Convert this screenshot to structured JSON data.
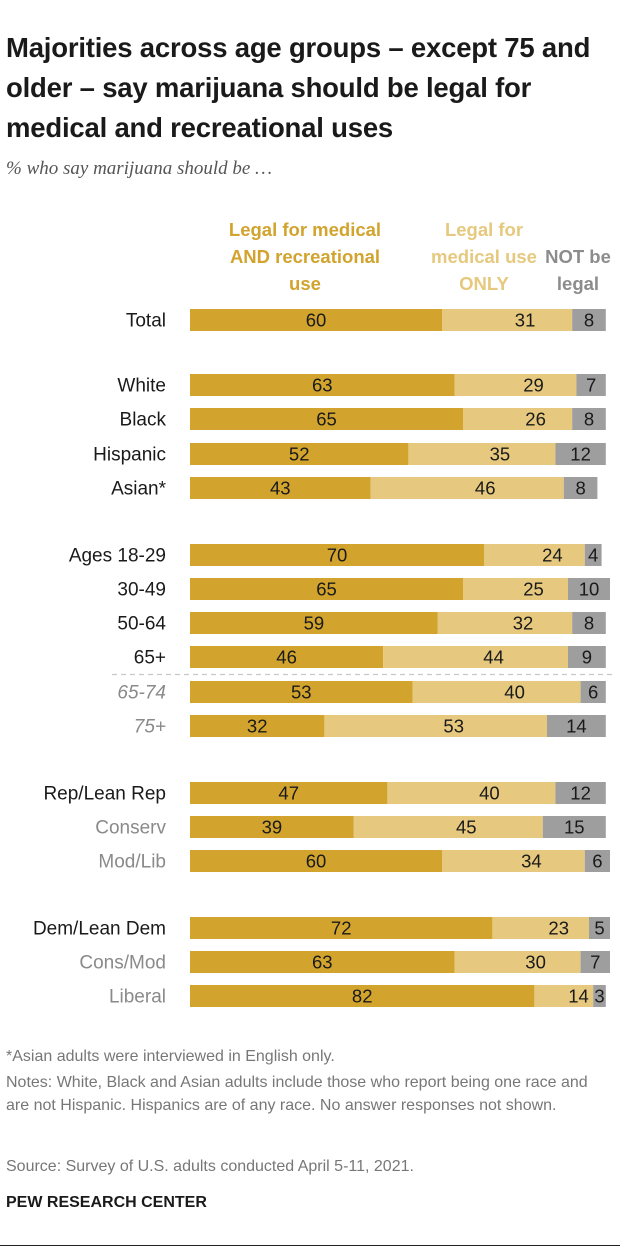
{
  "header": {
    "title": "Majorities across age groups – except 75 and older – say marijuana should be legal for medical and recreational uses",
    "subtitle": "% who say marijuana should be …"
  },
  "legend": {
    "series_a": "Legal for medical AND recreational use",
    "series_b": "Legal for medical use ONLY",
    "series_c": "NOT be legal"
  },
  "colors": {
    "series_a": "#d2a42e",
    "series_b": "#e6c97e",
    "series_c": "#9e9e9e",
    "label_dark": "#1a1a1a",
    "label_gray": "#8a8a8a"
  },
  "chart_data": {
    "type": "bar",
    "orientation": "horizontal",
    "stacked": true,
    "xlim": [
      0,
      100
    ],
    "series": [
      {
        "name": "Legal for medical AND recreational use",
        "values": [
          60,
          63,
          65,
          52,
          43,
          70,
          65,
          59,
          46,
          53,
          32,
          47,
          39,
          60,
          72,
          63,
          82
        ]
      },
      {
        "name": "Legal for medical use ONLY",
        "values": [
          31,
          29,
          26,
          35,
          46,
          24,
          25,
          32,
          44,
          40,
          53,
          40,
          45,
          34,
          23,
          30,
          14
        ]
      },
      {
        "name": "NOT be legal",
        "values": [
          8,
          7,
          8,
          12,
          8,
          4,
          10,
          8,
          9,
          6,
          14,
          12,
          15,
          6,
          5,
          7,
          3
        ]
      }
    ],
    "categories": [
      "Total",
      "White",
      "Black",
      "Hispanic",
      "Asian*",
      "Ages 18-29",
      "30-49",
      "50-64",
      "65+",
      "65-74",
      "75+",
      "Rep/Lean Rep",
      "Conserv",
      "Mod/Lib",
      "Dem/Lean Dem",
      "Cons/Mod",
      "Liberal"
    ],
    "category_style": [
      "dark",
      "dark",
      "dark",
      "dark",
      "dark",
      "dark",
      "dark",
      "dark",
      "dark",
      "gray-italic",
      "gray-italic",
      "dark",
      "gray",
      "gray",
      "dark",
      "gray",
      "gray"
    ]
  },
  "notes": {
    "asterisk": "*Asian adults were interviewed in English only.",
    "notes": "Notes: White, Black and Asian adults include those who report being one race and are not Hispanic. Hispanics are of any race. No answer responses not shown.",
    "source": "Source: Survey of U.S. adults conducted April 5-11, 2021."
  },
  "brand": "PEW RESEARCH CENTER"
}
